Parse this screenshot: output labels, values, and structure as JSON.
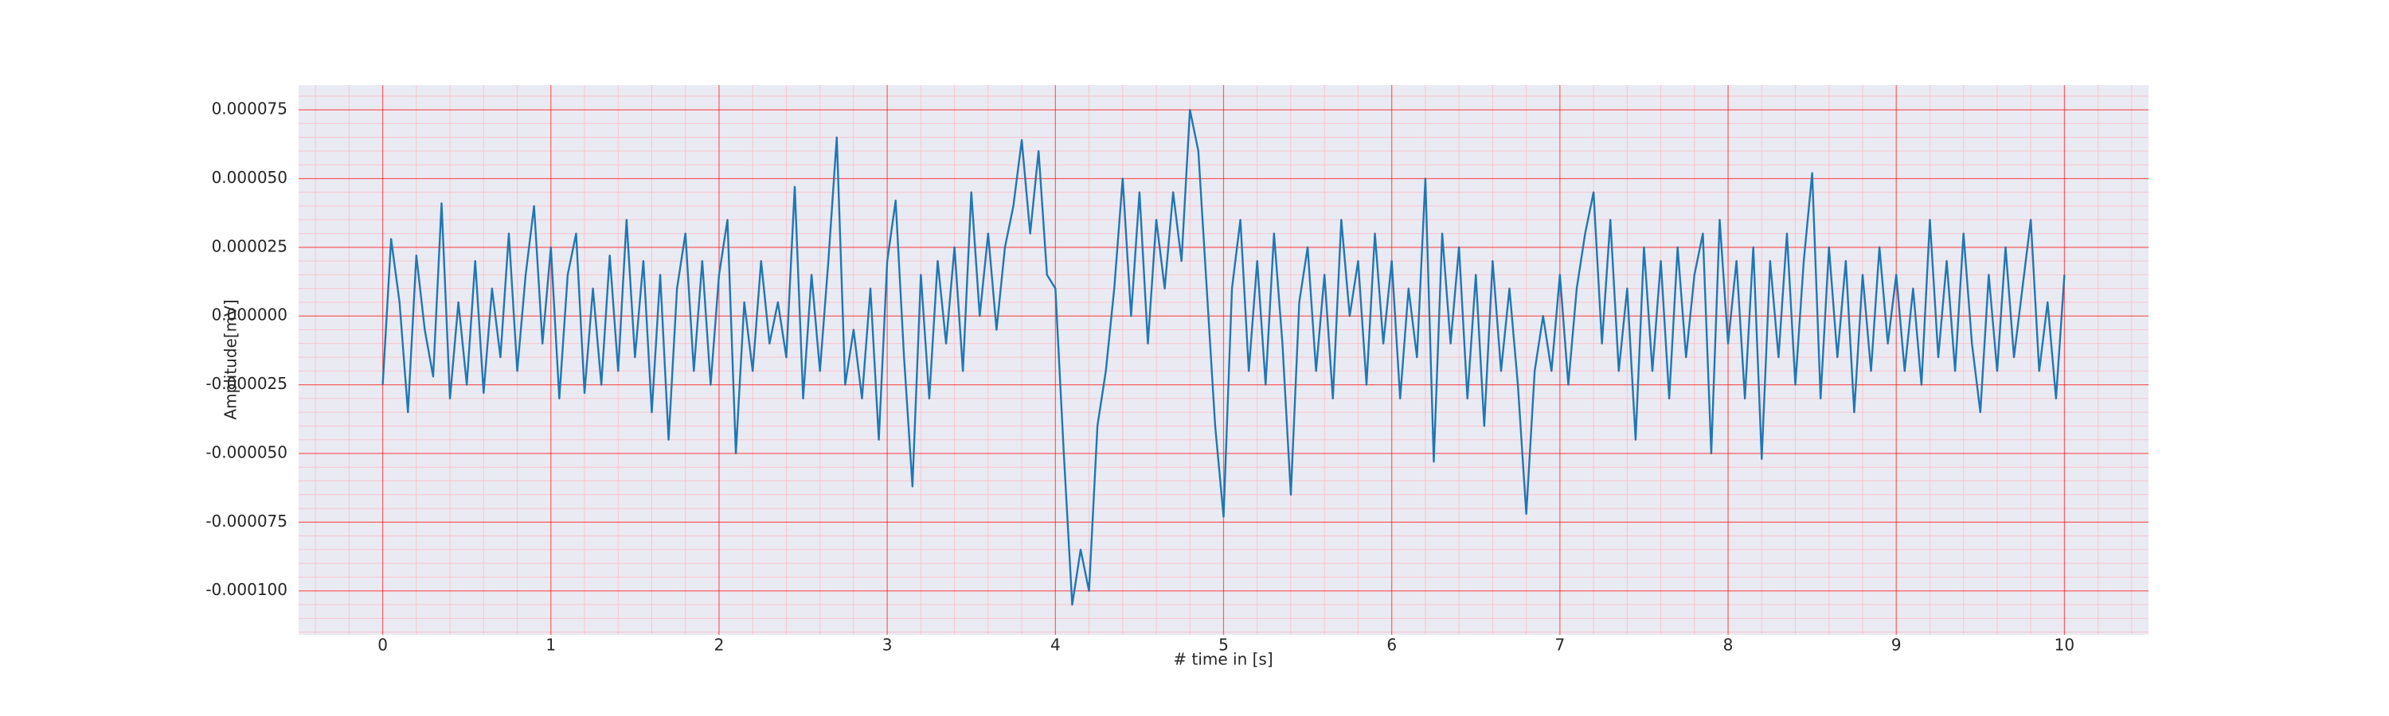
{
  "chart_data": {
    "type": "line",
    "xlabel": "# time in [s]",
    "ylabel": "Amplitude[mV]",
    "color": "#1f77b4",
    "grid": true,
    "minor_divisions": 5,
    "xlim": [
      -0.5,
      10.5
    ],
    "xticks": [
      0,
      1,
      2,
      3,
      4,
      5,
      6,
      7,
      8,
      9,
      10
    ],
    "ylim": [
      -0.000116,
      8.4e-05
    ],
    "yticks": [
      {
        "value": -0.0001,
        "label": "-0.000100"
      },
      {
        "value": -7.5e-05,
        "label": "-0.000075"
      },
      {
        "value": -5e-05,
        "label": "-0.000050"
      },
      {
        "value": -2.5e-05,
        "label": "-0.000025"
      },
      {
        "value": 0,
        "label": "0.000000"
      },
      {
        "value": 2.5e-05,
        "label": "0.000025"
      },
      {
        "value": 5e-05,
        "label": "0.000050"
      },
      {
        "value": 7.5e-05,
        "label": "0.000075"
      }
    ],
    "x": [
      0,
      0.05,
      0.1,
      0.15,
      0.2,
      0.25,
      0.3,
      0.35,
      0.4,
      0.45,
      0.5,
      0.55,
      0.6,
      0.65,
      0.7,
      0.75,
      0.8,
      0.85,
      0.9,
      0.95,
      1,
      1.05,
      1.1,
      1.15,
      1.2,
      1.25,
      1.3,
      1.35,
      1.4,
      1.45,
      1.5,
      1.55,
      1.6,
      1.65,
      1.7,
      1.75,
      1.8,
      1.85,
      1.9,
      1.95,
      2,
      2.05,
      2.1,
      2.15,
      2.2,
      2.25,
      2.3,
      2.35,
      2.4,
      2.45,
      2.5,
      2.55,
      2.6,
      2.65,
      2.7,
      2.75,
      2.8,
      2.85,
      2.9,
      2.95,
      3,
      3.05,
      3.1,
      3.15,
      3.2,
      3.25,
      3.3,
      3.35,
      3.4,
      3.45,
      3.5,
      3.55,
      3.6,
      3.65,
      3.7,
      3.75,
      3.8,
      3.85,
      3.9,
      3.95,
      4,
      4.05,
      4.1,
      4.15,
      4.2,
      4.25,
      4.3,
      4.35,
      4.4,
      4.45,
      4.5,
      4.55,
      4.6,
      4.65,
      4.7,
      4.75,
      4.8,
      4.85,
      4.9,
      4.95,
      5,
      5.05,
      5.1,
      5.15,
      5.2,
      5.25,
      5.3,
      5.35,
      5.4,
      5.45,
      5.5,
      5.55,
      5.6,
      5.65,
      5.7,
      5.75,
      5.8,
      5.85,
      5.9,
      5.95,
      6,
      6.05,
      6.1,
      6.15,
      6.2,
      6.25,
      6.3,
      6.35,
      6.4,
      6.45,
      6.5,
      6.55,
      6.6,
      6.65,
      6.7,
      6.75,
      6.8,
      6.85,
      6.9,
      6.95,
      7,
      7.05,
      7.1,
      7.15,
      7.2,
      7.25,
      7.3,
      7.35,
      7.4,
      7.45,
      7.5,
      7.55,
      7.6,
      7.65,
      7.7,
      7.75,
      7.8,
      7.85,
      7.9,
      7.95,
      8,
      8.05,
      8.1,
      8.15,
      8.2,
      8.25,
      8.3,
      8.35,
      8.4,
      8.45,
      8.5,
      8.55,
      8.6,
      8.65,
      8.7,
      8.75,
      8.8,
      8.85,
      8.9,
      8.95,
      9,
      9.05,
      9.1,
      9.15,
      9.2,
      9.25,
      9.3,
      9.35,
      9.4,
      9.45,
      9.5,
      9.55,
      9.6,
      9.65,
      9.7,
      9.75,
      9.8,
      9.85,
      9.9,
      9.95,
      10
    ],
    "values": [
      -2.5e-05,
      2.8e-05,
      5e-06,
      -3.5e-05,
      2.2e-05,
      -5e-06,
      -2.2e-05,
      4.1e-05,
      -3e-05,
      5e-06,
      -2.5e-05,
      2e-05,
      -2.8e-05,
      1e-05,
      -1.5e-05,
      3e-05,
      -2e-05,
      1.5e-05,
      4e-05,
      -1e-05,
      2.5e-05,
      -3e-05,
      1.5e-05,
      3e-05,
      -2.8e-05,
      1e-05,
      -2.5e-05,
      2.2e-05,
      -2e-05,
      3.5e-05,
      -1.5e-05,
      2e-05,
      -3.5e-05,
      1.5e-05,
      -4.5e-05,
      1e-05,
      3e-05,
      -2e-05,
      2e-05,
      -2.5e-05,
      1.5e-05,
      3.5e-05,
      -5e-05,
      5e-06,
      -2e-05,
      2e-05,
      -1e-05,
      5e-06,
      -1.5e-05,
      4.7e-05,
      -3e-05,
      1.5e-05,
      -2e-05,
      2e-05,
      6.5e-05,
      -2.5e-05,
      -5e-06,
      -3e-05,
      1e-05,
      -4.5e-05,
      2e-05,
      4.2e-05,
      -1.5e-05,
      -6.2e-05,
      1.5e-05,
      -3e-05,
      2e-05,
      -1e-05,
      2.5e-05,
      -2e-05,
      4.5e-05,
      0,
      3e-05,
      -5e-06,
      2.5e-05,
      4e-05,
      6.4e-05,
      3e-05,
      6e-05,
      1.5e-05,
      1e-05,
      -5e-05,
      -0.000105,
      -8.5e-05,
      -0.0001,
      -4e-05,
      -2e-05,
      1e-05,
      5e-05,
      0,
      4.5e-05,
      -1e-05,
      3.5e-05,
      1e-05,
      4.5e-05,
      2e-05,
      7.5e-05,
      6e-05,
      1e-05,
      -4e-05,
      -7.3e-05,
      1e-05,
      3.5e-05,
      -2e-05,
      2e-05,
      -2.5e-05,
      3e-05,
      -1e-05,
      -6.5e-05,
      5e-06,
      2.5e-05,
      -2e-05,
      1.5e-05,
      -3e-05,
      3.5e-05,
      0,
      2e-05,
      -2.5e-05,
      3e-05,
      -1e-05,
      2e-05,
      -3e-05,
      1e-05,
      -1.5e-05,
      5e-05,
      -5.3e-05,
      3e-05,
      -1e-05,
      2.5e-05,
      -3e-05,
      1.5e-05,
      -4e-05,
      2e-05,
      -2e-05,
      1e-05,
      -2.5e-05,
      -7.2e-05,
      -2e-05,
      0,
      -2e-05,
      1.5e-05,
      -2.5e-05,
      1e-05,
      3e-05,
      4.5e-05,
      -1e-05,
      3.5e-05,
      -2e-05,
      1e-05,
      -4.5e-05,
      2.5e-05,
      -2e-05,
      2e-05,
      -3e-05,
      2.5e-05,
      -1.5e-05,
      1.5e-05,
      3e-05,
      -5e-05,
      3.5e-05,
      -1e-05,
      2e-05,
      -3e-05,
      2.5e-05,
      -5.2e-05,
      2e-05,
      -1.5e-05,
      3e-05,
      -2.5e-05,
      2e-05,
      5.2e-05,
      -3e-05,
      2.5e-05,
      -1.5e-05,
      2e-05,
      -3.5e-05,
      1.5e-05,
      -2e-05,
      2.5e-05,
      -1e-05,
      1.5e-05,
      -2e-05,
      1e-05,
      -2.5e-05,
      3.5e-05,
      -1.5e-05,
      2e-05,
      -2e-05,
      3e-05,
      -1e-05,
      -3.5e-05,
      1.5e-05,
      -2e-05,
      2.5e-05,
      -1.5e-05,
      1e-05,
      3.5e-05,
      -2e-05,
      5e-06,
      -3e-05,
      1.5e-05
    ]
  }
}
